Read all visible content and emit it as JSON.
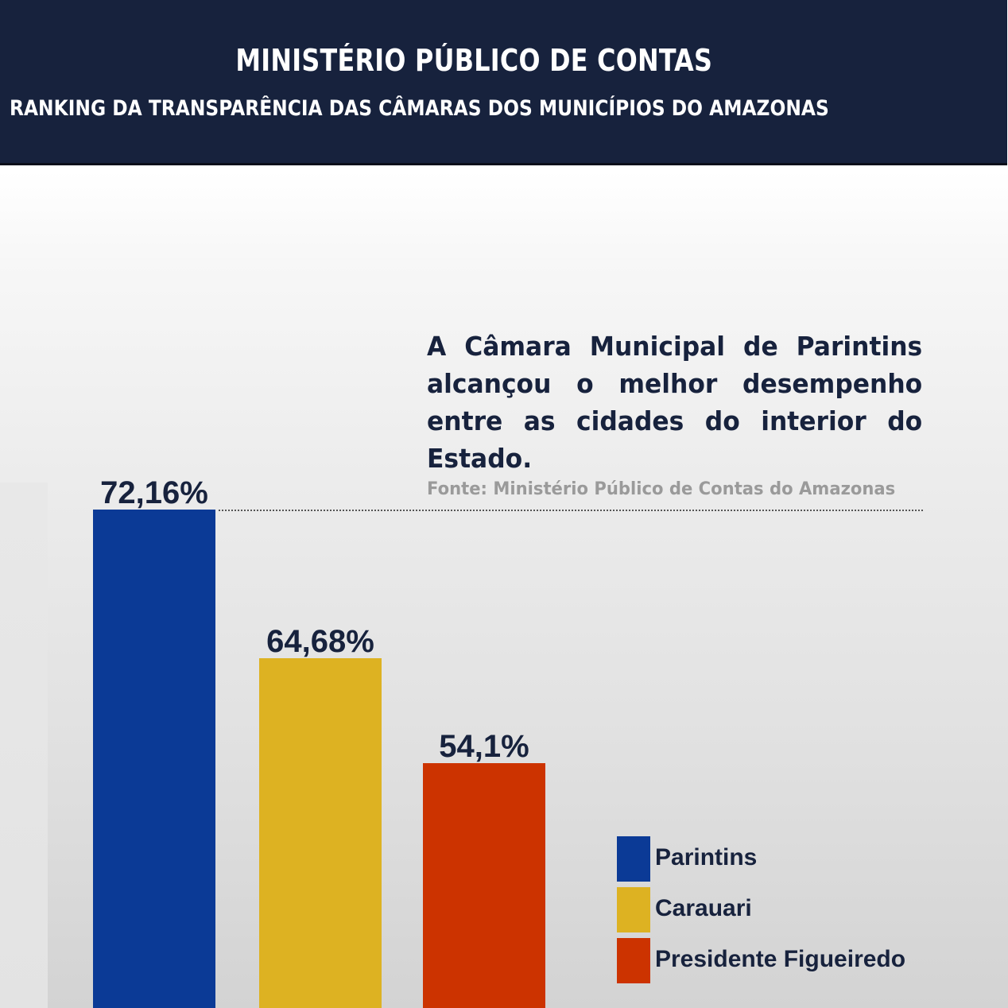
{
  "header": {
    "title": "MINISTÉRIO PÚBLICO DE CONTAS",
    "subtitle": "RANKING DA TRANSPARÊNCIA DAS CÂMARAS DOS MUNICÍPIOS DO AMAZONAS"
  },
  "callout": {
    "text": "A Câmara Municipal de Parintins alcançou o melhor desempenho entre as cidades do interior do Estado.",
    "source": "Fonte:  Ministério Público de Contas do Amazonas"
  },
  "colors": {
    "header_bg": "#17223d",
    "text_dark": "#17223d",
    "source_gray": "#9a9a9a"
  },
  "chart_data": {
    "type": "bar",
    "title": "RANKING DA TRANSPARÊNCIA DAS CÂMARAS DOS MUNICÍPIOS DO AMAZONAS",
    "xlabel": "",
    "ylabel": "",
    "categories": [
      "Parintins",
      "Carauari",
      "Presidente Figueiredo"
    ],
    "values": [
      72.16,
      64.68,
      54.1
    ],
    "value_labels": [
      "72,16%",
      "64,68%",
      "54,1%"
    ],
    "unit": "%",
    "colors": [
      "#0b3a96",
      "#ddb222",
      "#cc3300"
    ],
    "grid": false,
    "legend": {
      "placement": "bottom-right",
      "entries": [
        "Parintins",
        "Carauari",
        "Presidente Figueiredo"
      ]
    }
  }
}
